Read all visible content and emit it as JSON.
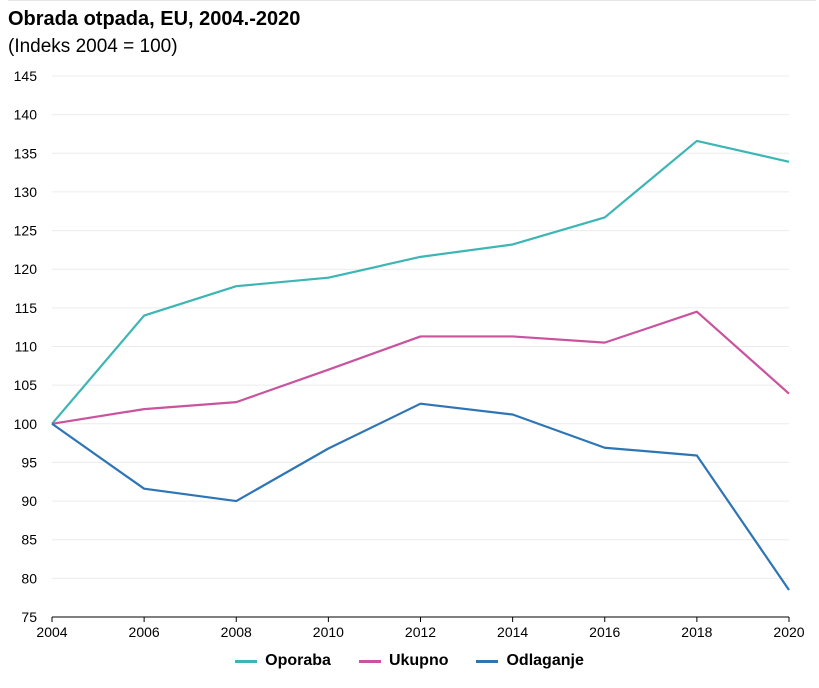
{
  "chart_data": {
    "type": "line",
    "title": "Obrada otpada, EU, 2004.-2020",
    "subtitle": "(Indeks 2004 = 100)",
    "xlabel": "",
    "ylabel": "",
    "x": [
      "2004",
      "2006",
      "2008",
      "2010",
      "2012",
      "2014",
      "2016",
      "2018",
      "2020"
    ],
    "ylim": [
      75,
      145
    ],
    "yticks": [
      "145",
      "140",
      "135",
      "130",
      "125",
      "120",
      "115",
      "110",
      "105",
      "100",
      "95",
      "90",
      "85",
      "80",
      "75"
    ],
    "grid": true,
    "legend_position": "bottom",
    "series": [
      {
        "name": "Oporaba",
        "color": "#3cb6b4",
        "values": [
          100,
          114,
          117.8,
          118.9,
          121.6,
          123.2,
          126.7,
          136.6,
          133.9
        ]
      },
      {
        "name": "Ukupno",
        "color": "#c9539f",
        "values": [
          100,
          101.9,
          102.8,
          107,
          111.3,
          111.3,
          110.5,
          114.5,
          103.9
        ]
      },
      {
        "name": "Odlaganje",
        "color": "#2e75b6",
        "values": [
          100,
          91.6,
          90,
          96.8,
          102.6,
          101.2,
          96.9,
          95.9,
          78.5
        ]
      }
    ]
  }
}
